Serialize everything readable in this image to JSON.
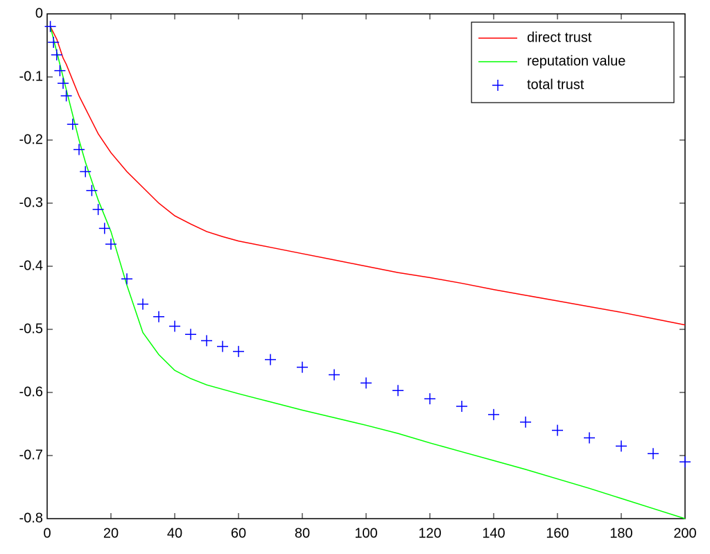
{
  "chart_data": {
    "type": "line",
    "x": [
      1,
      2,
      3,
      4,
      5,
      6,
      8,
      10,
      12,
      14,
      16,
      18,
      20,
      25,
      30,
      35,
      40,
      45,
      50,
      55,
      60,
      70,
      80,
      90,
      100,
      110,
      120,
      130,
      140,
      150,
      160,
      170,
      180,
      190,
      200
    ],
    "series": [
      {
        "name": "direct trust",
        "color": "#ff0000",
        "style": "line",
        "values": [
          -0.02,
          -0.03,
          -0.04,
          -0.055,
          -0.07,
          -0.08,
          -0.105,
          -0.13,
          -0.15,
          -0.17,
          -0.19,
          -0.205,
          -0.22,
          -0.25,
          -0.275,
          -0.3,
          -0.32,
          -0.333,
          -0.345,
          -0.353,
          -0.36,
          -0.37,
          -0.38,
          -0.39,
          -0.4,
          -0.41,
          -0.418,
          -0.427,
          -0.437,
          -0.446,
          -0.455,
          -0.464,
          -0.473,
          -0.483,
          -0.493
        ]
      },
      {
        "name": "reputation value",
        "color": "#00ff00",
        "style": "line",
        "values": [
          -0.02,
          -0.04,
          -0.06,
          -0.08,
          -0.1,
          -0.12,
          -0.16,
          -0.2,
          -0.235,
          -0.265,
          -0.295,
          -0.32,
          -0.345,
          -0.43,
          -0.505,
          -0.54,
          -0.565,
          -0.578,
          -0.588,
          -0.595,
          -0.602,
          -0.615,
          -0.628,
          -0.64,
          -0.652,
          -0.665,
          -0.68,
          -0.694,
          -0.708,
          -0.722,
          -0.737,
          -0.752,
          -0.768,
          -0.784,
          -0.8
        ]
      },
      {
        "name": "total trust",
        "color": "#0000ff",
        "style": "marker",
        "values": [
          -0.02,
          -0.045,
          -0.065,
          -0.09,
          -0.11,
          -0.13,
          -0.175,
          -0.215,
          -0.25,
          -0.28,
          -0.31,
          -0.34,
          -0.365,
          -0.42,
          -0.46,
          -0.48,
          -0.495,
          -0.508,
          -0.518,
          -0.527,
          -0.535,
          -0.548,
          -0.56,
          -0.572,
          -0.585,
          -0.597,
          -0.61,
          -0.622,
          -0.635,
          -0.647,
          -0.66,
          -0.672,
          -0.685,
          -0.697,
          -0.71
        ]
      }
    ],
    "xlim": [
      0,
      200
    ],
    "xticks": [
      0,
      20,
      40,
      60,
      80,
      100,
      120,
      140,
      160,
      180,
      200
    ],
    "ylim": [
      -0.8,
      0
    ],
    "yticks": [
      0,
      -0.1,
      -0.2,
      -0.3,
      -0.4,
      -0.5,
      -0.6,
      -0.7,
      -0.8
    ],
    "grid": false,
    "legend": "upper right"
  }
}
